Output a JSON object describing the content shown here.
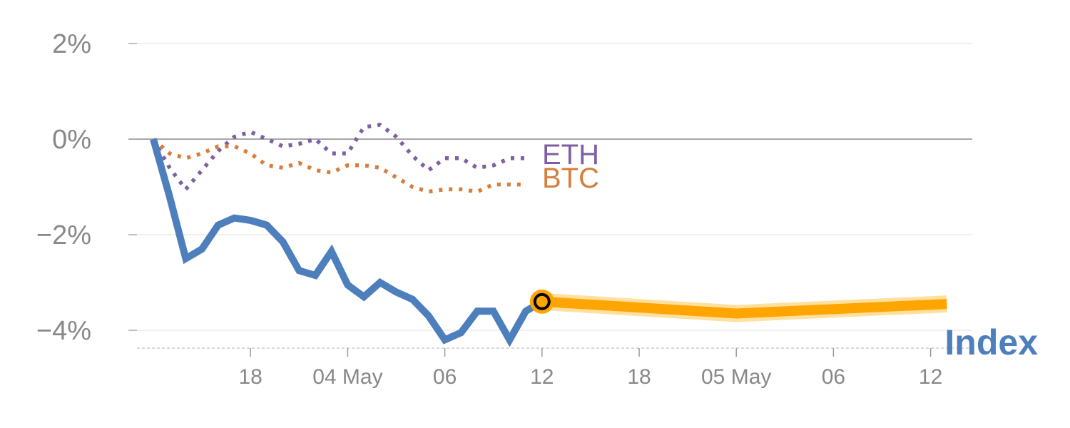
{
  "chart_data": {
    "type": "line",
    "y_unit": "%",
    "ylim": [
      -4.4,
      2.0
    ],
    "yticks": [
      {
        "value": 2,
        "label": "2%"
      },
      {
        "value": 0,
        "label": "0%"
      },
      {
        "value": -2,
        "label": "−2%"
      },
      {
        "value": -4,
        "label": "−4%"
      }
    ],
    "xticks": [
      {
        "x": 6,
        "label": "18"
      },
      {
        "x": 12,
        "label": "04 May"
      },
      {
        "x": 18,
        "label": "06"
      },
      {
        "x": 24,
        "label": "12"
      },
      {
        "x": 30,
        "label": "18"
      },
      {
        "x": 36,
        "label": "05 May"
      },
      {
        "x": 42,
        "label": "06"
      },
      {
        "x": 48,
        "label": "12"
      }
    ],
    "grid": true,
    "zero_line": true,
    "series": [
      {
        "name": "Index",
        "color": "#4e7fbd",
        "style": "solid",
        "x": [
          0,
          1,
          2,
          3,
          4,
          5,
          6,
          7,
          8,
          9,
          10,
          11,
          12,
          13,
          14,
          15,
          16,
          17,
          18,
          19,
          20,
          21,
          22,
          23,
          24,
          25
        ],
        "values": [
          0,
          -1.2,
          -2.5,
          -2.3,
          -1.8,
          -1.65,
          -1.7,
          -1.8,
          -2.15,
          -2.75,
          -2.85,
          -2.35,
          -3.05,
          -3.3,
          -3.0,
          -3.2,
          -3.35,
          -3.7,
          -4.2,
          -4.05,
          -3.6,
          -3.6,
          -4.2,
          -3.6,
          -3.4,
          -3.4
        ]
      },
      {
        "name": "ETH",
        "color": "#7e5fa3",
        "style": "dotted",
        "x": [
          0,
          1,
          2,
          3,
          4,
          5,
          6,
          7,
          8,
          9,
          10,
          11,
          12,
          13,
          14,
          15,
          16,
          17,
          18,
          19,
          20,
          21,
          22,
          23
        ],
        "values": [
          0,
          -0.6,
          -1.05,
          -0.65,
          -0.25,
          0.05,
          0.15,
          0.0,
          -0.15,
          -0.1,
          0.0,
          -0.3,
          -0.3,
          0.25,
          0.3,
          0.05,
          -0.35,
          -0.65,
          -0.4,
          -0.4,
          -0.6,
          -0.55,
          -0.4,
          -0.4
        ]
      },
      {
        "name": "BTC",
        "color": "#d67e3c",
        "style": "dotted",
        "x": [
          0,
          1,
          2,
          3,
          4,
          5,
          6,
          7,
          8,
          9,
          10,
          11,
          12,
          13,
          14,
          15,
          16,
          17,
          18,
          19,
          20,
          21,
          22,
          23
        ],
        "values": [
          0,
          -0.3,
          -0.4,
          -0.3,
          -0.15,
          -0.15,
          -0.3,
          -0.55,
          -0.6,
          -0.5,
          -0.65,
          -0.7,
          -0.55,
          -0.55,
          -0.6,
          -0.8,
          -1.0,
          -1.1,
          -1.05,
          -1.05,
          -1.1,
          -0.95,
          -0.95,
          -0.95
        ]
      },
      {
        "name": "",
        "color": "#ffa500",
        "style": "highlight",
        "x": [
          24,
          36,
          49
        ],
        "values": [
          -3.4,
          -3.65,
          -3.45
        ]
      }
    ],
    "labels": {
      "eth": "ETH",
      "btc": "BTC",
      "index": "Index"
    }
  }
}
